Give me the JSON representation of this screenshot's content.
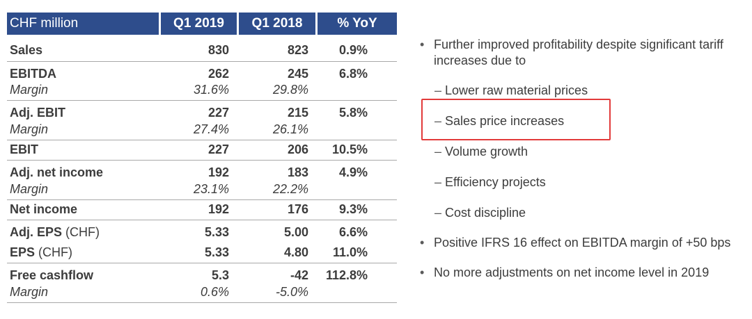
{
  "table": {
    "headers": [
      "CHF million",
      "Q1 2019",
      "Q1 2018",
      "% YoY"
    ],
    "rows": [
      {
        "label": "Sales",
        "q1_2019": "830",
        "q1_2018": "823",
        "yoy": "0.9%"
      },
      {
        "label": "EBITDA",
        "q1_2019": "262",
        "q1_2018": "245",
        "yoy": "6.8%",
        "margin_label": "Margin",
        "margin_2019": "31.6%",
        "margin_2018": "29.8%"
      },
      {
        "label": "Adj. EBIT",
        "q1_2019": "227",
        "q1_2018": "215",
        "yoy": "5.8%",
        "margin_label": "Margin",
        "margin_2019": "27.4%",
        "margin_2018": "26.1%"
      },
      {
        "label": "EBIT",
        "q1_2019": "227",
        "q1_2018": "206",
        "yoy": "10.5%"
      },
      {
        "label": "Adj. net income",
        "q1_2019": "192",
        "q1_2018": "183",
        "yoy": "4.9%",
        "margin_label": "Margin",
        "margin_2019": "23.1%",
        "margin_2018": "22.2%"
      },
      {
        "label": "Net income",
        "q1_2019": "192",
        "q1_2018": "176",
        "yoy": "9.3%"
      },
      {
        "label": "Adj. EPS",
        "suffix": " (CHF)",
        "q1_2019": "5.33",
        "q1_2018": "5.00",
        "yoy": "6.6%"
      },
      {
        "label": "EPS",
        "suffix": " (CHF)",
        "q1_2019": "5.33",
        "q1_2018": "4.80",
        "yoy": "11.0%"
      },
      {
        "label": "Free cashflow",
        "q1_2019": "5.3",
        "q1_2018": "-42",
        "yoy": "112.8%",
        "margin_label": "Margin",
        "margin_2019": "0.6%",
        "margin_2018": "-5.0%"
      }
    ]
  },
  "bullets": {
    "b1_line1": "Further improved profitability despite significant tariff",
    "b1_line2": "increases due to",
    "subs": [
      "Lower raw material prices",
      "Sales price increases",
      "Volume growth",
      "Efficiency projects",
      "Cost discipline"
    ],
    "b2": "Positive IFRS 16 effect on EBITDA margin of +50 bps",
    "b3": "No more adjustments on net income level in 2019"
  },
  "colors": {
    "header_bg": "#2e4d8c",
    "highlight_border": "#e23a3a"
  }
}
